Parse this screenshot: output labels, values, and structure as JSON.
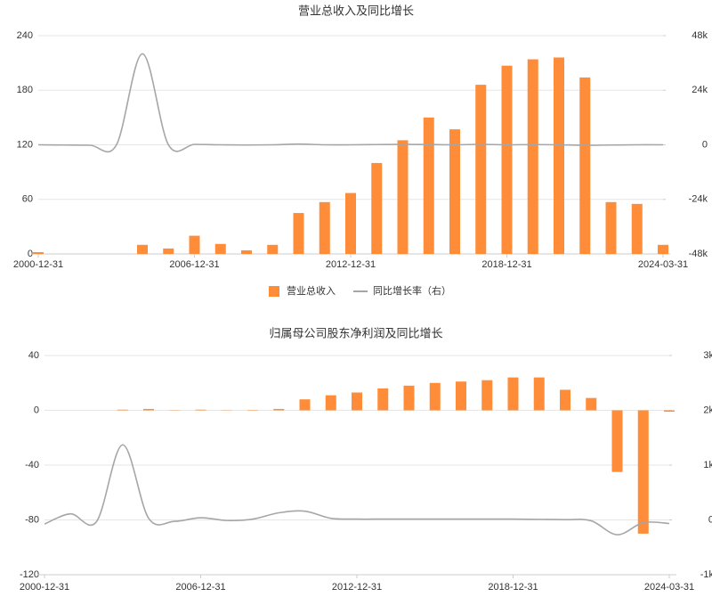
{
  "chart_data": [
    {
      "type": "bar_line",
      "title": "营业总收入及同比增长",
      "categories": [
        "2000-12-31",
        null,
        null,
        null,
        null,
        null,
        "2006-12-31",
        null,
        null,
        null,
        null,
        null,
        "2012-12-31",
        null,
        null,
        null,
        null,
        null,
        "2018-12-31",
        null,
        null,
        null,
        null,
        null,
        "2024-03-31"
      ],
      "series": [
        {
          "name": "营业总收入",
          "color": "#ff8c38",
          "values": [
            2,
            null,
            null,
            null,
            10,
            6,
            20,
            11,
            4,
            10,
            45,
            57,
            67,
            100,
            125,
            150,
            137,
            186,
            207,
            214,
            216,
            194,
            57,
            55,
            10
          ]
        },
        {
          "name": "同比增长率（右）",
          "color": "#a6a6a6",
          "axis": "y2",
          "values": [
            0,
            -100,
            -200,
            -100,
            40000,
            0,
            200,
            0,
            -100,
            0,
            300,
            0,
            0,
            100,
            200,
            100,
            0,
            200,
            0,
            100,
            0,
            -200,
            -100,
            0,
            0
          ]
        }
      ],
      "ylim": [
        0,
        240
      ],
      "yticks": [
        0,
        60,
        120,
        180,
        240
      ],
      "y2lim": [
        -48000,
        48000
      ],
      "y2ticks": [
        {
          "value": -48000,
          "label": "-48k"
        },
        {
          "value": -24000,
          "label": "-24k"
        },
        0,
        {
          "value": 24000,
          "label": "24k"
        },
        {
          "value": 48000,
          "label": "48k"
        }
      ],
      "grid": true,
      "legend": "bottom"
    },
    {
      "type": "bar_line",
      "title": "归属母公司股东净利润及同比增长",
      "categories": [
        "2000-12-31",
        null,
        null,
        null,
        null,
        null,
        "2006-12-31",
        null,
        null,
        null,
        null,
        null,
        "2012-12-31",
        null,
        null,
        null,
        null,
        null,
        "2018-12-31",
        null,
        null,
        null,
        null,
        null,
        "2024-03-31"
      ],
      "series": [
        {
          "color": "#ff8c38",
          "values": [
            null,
            null,
            null,
            0.5,
            1,
            0.2,
            0.5,
            0.2,
            0.3,
            1,
            8,
            11,
            13,
            16,
            18,
            20,
            21,
            22,
            24,
            24,
            15,
            9,
            -45,
            -90,
            -1
          ]
        },
        {
          "color": "#a6a6a6",
          "axis": "y2",
          "values": [
            -75,
            110,
            -30,
            1370,
            30,
            -25,
            40,
            -10,
            15,
            130,
            160,
            30,
            15,
            15,
            15,
            15,
            15,
            15,
            15,
            10,
            5,
            -15,
            -270,
            -50,
            -65
          ]
        }
      ],
      "ylim": [
        -120,
        40
      ],
      "yticks": [
        -120,
        -80,
        -40,
        0,
        40
      ],
      "y2lim": [
        -1000,
        3000
      ],
      "y2ticks": [
        {
          "value": -1000,
          "label": "-1k"
        },
        0,
        {
          "value": 1000,
          "label": "1k"
        },
        {
          "value": 2000,
          "label": "2k"
        },
        {
          "value": 3000,
          "label": "3k"
        }
      ],
      "grid": true
    }
  ]
}
